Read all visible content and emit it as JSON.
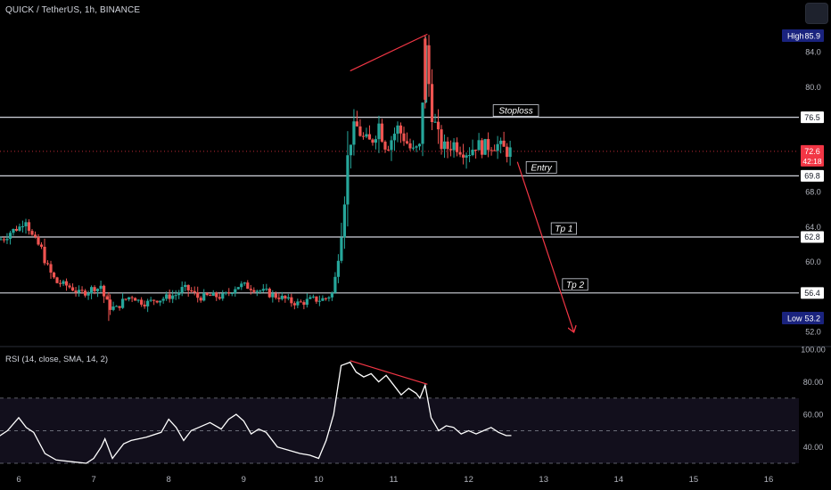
{
  "header": {
    "title": "QUICK / TetherUS, 1h, BINANCE",
    "rsi_title": "RSI (14, close, SMA, 14, 2)"
  },
  "colors": {
    "background": "#000000",
    "up": "#26a69a",
    "down": "#ef5350",
    "level_line": "#d1d4dc",
    "annotation": "#f23645",
    "rsi_line": "#ffffff",
    "last_price_tag": "#f23645",
    "high_low_tag": "#1a237e"
  },
  "chart_data": [
    {
      "type": "candlestick",
      "symbol": "QUICK / TetherUS",
      "timeframe": "1h",
      "exchange": "BINANCE",
      "x_ticks": [
        "6",
        "7",
        "8",
        "9",
        "10",
        "11",
        "12",
        "13",
        "14",
        "15",
        "16"
      ],
      "y_ticks": [
        84.0,
        80.0,
        76.0,
        72.0,
        68.0,
        64.0,
        60.0,
        56.0,
        52.0
      ],
      "y_tick_labels": [
        "84.0",
        "80.0",
        "76.5",
        "72.6",
        "69.8",
        "68.0",
        "64.0",
        "62.8",
        "60.0",
        "56.4",
        "52.0"
      ],
      "ylim": [
        51.0,
        88.0
      ],
      "xlim": [
        5.7,
        16.3
      ],
      "high": {
        "label": "High",
        "value": "85.9"
      },
      "low": {
        "label": "Low",
        "value": "53.2"
      },
      "last_price": {
        "value": "72.6",
        "countdown": "42:18"
      },
      "levels": [
        {
          "label": "Stoploss",
          "value": 76.5,
          "tag": "76.5"
        },
        {
          "label": "Entry",
          "value": 69.8,
          "tag": "69.8"
        },
        {
          "label": "Tp 1",
          "value": 62.8,
          "tag": "62.8"
        },
        {
          "label": "Tp 2",
          "value": 56.4,
          "tag": "56.4"
        }
      ],
      "close_path": [
        [
          5.72,
          62.5
        ],
        [
          5.8,
          62.6
        ],
        [
          5.9,
          63.5
        ],
        [
          6.0,
          63.8
        ],
        [
          6.1,
          65.0
        ],
        [
          6.15,
          63.4
        ],
        [
          6.2,
          62.5
        ],
        [
          6.3,
          61.5
        ],
        [
          6.4,
          59.0
        ],
        [
          6.5,
          57.6
        ],
        [
          6.6,
          57.4
        ],
        [
          6.7,
          57.0
        ],
        [
          6.8,
          56.4
        ],
        [
          6.9,
          56.5
        ],
        [
          7.0,
          57.0
        ],
        [
          7.05,
          56.9
        ],
        [
          7.1,
          57.3
        ],
        [
          7.15,
          55.6
        ],
        [
          7.2,
          54.9
        ],
        [
          7.3,
          54.6
        ],
        [
          7.4,
          55.5
        ],
        [
          7.5,
          56.1
        ],
        [
          7.6,
          55.5
        ],
        [
          7.7,
          55.2
        ],
        [
          7.8,
          55.6
        ],
        [
          7.9,
          55.7
        ],
        [
          8.0,
          56.0
        ],
        [
          8.1,
          56.2
        ],
        [
          8.2,
          57.0
        ],
        [
          8.3,
          56.6
        ],
        [
          8.4,
          55.8
        ],
        [
          8.5,
          56.0
        ],
        [
          8.6,
          56.1
        ],
        [
          8.7,
          55.9
        ],
        [
          8.8,
          56.4
        ],
        [
          8.9,
          57.2
        ],
        [
          9.0,
          57.3
        ],
        [
          9.1,
          57.0
        ],
        [
          9.2,
          56.7
        ],
        [
          9.3,
          56.5
        ],
        [
          9.4,
          56.1
        ],
        [
          9.5,
          55.9
        ],
        [
          9.6,
          55.5
        ],
        [
          9.7,
          55.2
        ],
        [
          9.8,
          55.3
        ],
        [
          9.9,
          55.7
        ],
        [
          10.0,
          55.6
        ],
        [
          10.1,
          55.8
        ],
        [
          10.2,
          56.5
        ],
        [
          10.28,
          62.5
        ],
        [
          10.36,
          69.5
        ],
        [
          10.42,
          74.0
        ],
        [
          10.5,
          75.5
        ],
        [
          10.6,
          74.0
        ],
        [
          10.7,
          73.5
        ],
        [
          10.8,
          75.8
        ],
        [
          10.9,
          73.0
        ],
        [
          11.0,
          74.5
        ],
        [
          11.05,
          75.3
        ],
        [
          11.15,
          74.0
        ],
        [
          11.25,
          72.5
        ],
        [
          11.35,
          73.1
        ],
        [
          11.42,
          84.5
        ],
        [
          11.5,
          77.8
        ],
        [
          11.6,
          73.8
        ],
        [
          11.7,
          72.9
        ],
        [
          11.8,
          73.5
        ],
        [
          11.9,
          72.8
        ],
        [
          12.0,
          72.5
        ],
        [
          12.1,
          73.4
        ],
        [
          12.2,
          73.0
        ],
        [
          12.3,
          73.4
        ],
        [
          12.4,
          73.3
        ],
        [
          12.5,
          72.6
        ],
        [
          12.57,
          72.6
        ]
      ],
      "annotations": [
        {
          "type": "trendline",
          "from": [
            10.42,
            81.8
          ],
          "to": [
            11.45,
            86.0
          ]
        },
        {
          "type": "arrow",
          "from": [
            12.65,
            71.4
          ],
          "to": [
            13.4,
            52.0
          ]
        }
      ]
    },
    {
      "type": "line",
      "name": "RSI",
      "title": "RSI (14, close, SMA, 14, 2)",
      "y_ticks": [
        40.0,
        60.0,
        80.0,
        100.0
      ],
      "y_tick_labels": [
        "40.00",
        "60.00",
        "80.00",
        "100.00"
      ],
      "ylim": [
        30,
        102
      ],
      "bands": [
        30,
        50,
        70
      ],
      "x": [
        5.72,
        5.85,
        6.0,
        6.1,
        6.2,
        6.35,
        6.5,
        6.7,
        6.9,
        7.0,
        7.1,
        7.15,
        7.25,
        7.4,
        7.5,
        7.7,
        7.9,
        8.0,
        8.1,
        8.2,
        8.3,
        8.4,
        8.55,
        8.7,
        8.8,
        8.9,
        9.0,
        9.1,
        9.2,
        9.3,
        9.45,
        9.6,
        9.75,
        9.88,
        10.0,
        10.1,
        10.2,
        10.3,
        10.42,
        10.5,
        10.6,
        10.7,
        10.8,
        10.9,
        11.0,
        11.1,
        11.2,
        11.3,
        11.35,
        11.42,
        11.5,
        11.6,
        11.7,
        11.8,
        11.9,
        12.0,
        12.1,
        12.2,
        12.3,
        12.4,
        12.5,
        12.57
      ],
      "values": [
        46,
        50,
        58,
        52,
        49,
        36,
        32,
        31,
        30,
        33,
        40,
        45,
        33,
        42,
        44,
        46,
        49,
        57,
        52,
        44,
        50,
        52,
        55,
        51,
        57,
        60,
        56,
        48,
        51,
        49,
        40,
        38,
        36,
        35,
        33,
        44,
        60,
        90,
        92,
        86,
        83,
        85,
        80,
        84,
        78,
        72,
        76,
        73,
        70,
        78,
        58,
        50,
        53,
        52,
        48,
        50,
        48,
        50,
        52,
        49,
        47,
        47
      ]
    }
  ]
}
